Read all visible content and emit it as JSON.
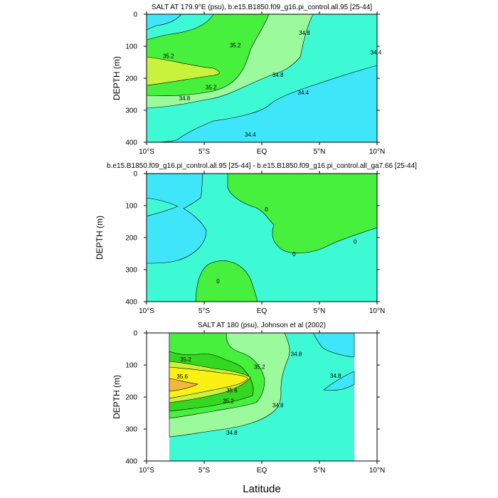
{
  "figure": {
    "x_axis_label": "Latitude"
  },
  "chart_data": [
    {
      "type": "contour",
      "title": "SALT AT 179.9°E (psu), b.e15.B1850.f09_g16.pi_control.all.95 [25-44]",
      "ylabel": "DEPTH (m)",
      "xlim": [
        -10,
        10
      ],
      "ylim": [
        400,
        0
      ],
      "x_ticks": [
        -10,
        -5,
        0,
        5,
        10
      ],
      "x_tick_labels": [
        "10°S",
        "5°S",
        "EQ",
        "5°N",
        "10°N"
      ],
      "y_ticks": [
        0,
        100,
        200,
        300,
        400
      ],
      "y_tick_labels": [
        "0",
        "100",
        "200",
        "300",
        "400"
      ],
      "contour_labels": [
        {
          "text": "35.2",
          "lat": -8.1,
          "depth": 130
        },
        {
          "text": "35.2",
          "lat": -2.3,
          "depth": 97
        },
        {
          "text": "35.2",
          "lat": -4.4,
          "depth": 228
        },
        {
          "text": "34.8",
          "lat": -6.7,
          "depth": 262
        },
        {
          "text": "34.8",
          "lat": 3.7,
          "depth": 58
        },
        {
          "text": "34.8",
          "lat": 1.4,
          "depth": 189
        },
        {
          "text": "34.4",
          "lat": 9.9,
          "depth": 119
        },
        {
          "text": "34.4",
          "lat": 3.6,
          "depth": 244
        },
        {
          "text": "34.4",
          "lat": -1.0,
          "depth": 375
        }
      ]
    },
    {
      "type": "contour",
      "title": "b.e15.B1850.f09_g16.pi_control.all.95 [25-44] - b.e15.B1850.f09_g16.pi_control.all_ga7.66 [25-44]",
      "ylabel": "DEPTH (m)",
      "xlim": [
        -10,
        10
      ],
      "ylim": [
        400,
        0
      ],
      "x_ticks": [
        -10,
        -5,
        0,
        5,
        10
      ],
      "x_tick_labels": [
        "10°S",
        "5°S",
        "EQ",
        "5°N",
        "10°N"
      ],
      "y_ticks": [
        0,
        100,
        200,
        300,
        400
      ],
      "y_tick_labels": [
        "0",
        "100",
        "200",
        "300",
        "400"
      ],
      "contour_labels": [
        {
          "text": "0",
          "lat": 0.4,
          "depth": 111
        },
        {
          "text": "0",
          "lat": 2.8,
          "depth": 251
        },
        {
          "text": "0",
          "lat": 8.1,
          "depth": 212
        },
        {
          "text": "0",
          "lat": -3.8,
          "depth": 336
        }
      ]
    },
    {
      "type": "contour",
      "title": "SALT AT 180 (psu), Johnson et al (2002)",
      "ylabel": "DEPTH (m)",
      "xlim": [
        -10,
        10
      ],
      "ylim": [
        400,
        0
      ],
      "x_ticks": [
        -10,
        -5,
        0,
        5,
        10
      ],
      "x_tick_labels": [
        "10°S",
        "5°S",
        "EQ",
        "5°N",
        "10°N"
      ],
      "y_ticks": [
        0,
        100,
        200,
        300,
        400
      ],
      "y_tick_labels": [
        "0",
        "100",
        "200",
        "300",
        "400"
      ],
      "data_extent_lat": [
        -8,
        8
      ],
      "contour_labels": [
        {
          "text": "35.2",
          "lat": -6.6,
          "depth": 82
        },
        {
          "text": "35.2",
          "lat": -0.2,
          "depth": 105
        },
        {
          "text": "35.6",
          "lat": -6.9,
          "depth": 135
        },
        {
          "text": "35.6",
          "lat": -2.6,
          "depth": 179
        },
        {
          "text": "35.2",
          "lat": -2.9,
          "depth": 212
        },
        {
          "text": "34.8",
          "lat": 3.0,
          "depth": 66
        },
        {
          "text": "34.8",
          "lat": 6.4,
          "depth": 133
        },
        {
          "text": "34.8",
          "lat": 1.4,
          "depth": 226
        },
        {
          "text": "34.8",
          "lat": -2.6,
          "depth": 311
        }
      ]
    }
  ]
}
